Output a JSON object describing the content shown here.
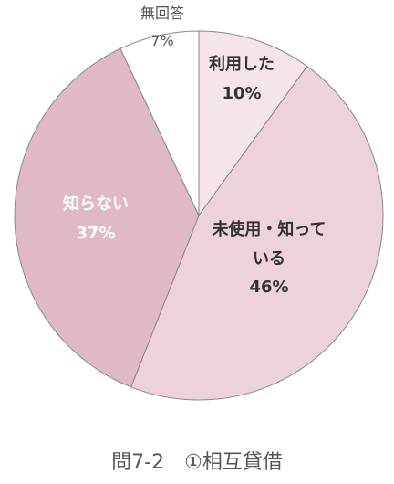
{
  "chart_data": {
    "type": "pie",
    "title": "問7-2　①相互貸借",
    "categories": [
      "利用した",
      "未使用・知っている",
      "知らない",
      "無回答"
    ],
    "values": [
      10,
      46,
      37,
      7
    ],
    "value_labels": [
      "10%",
      "46%",
      "37%",
      "7%"
    ],
    "colors": [
      "#f5e4ea",
      "#edd2dc",
      "#e0b9c7",
      "#ffffff"
    ]
  }
}
